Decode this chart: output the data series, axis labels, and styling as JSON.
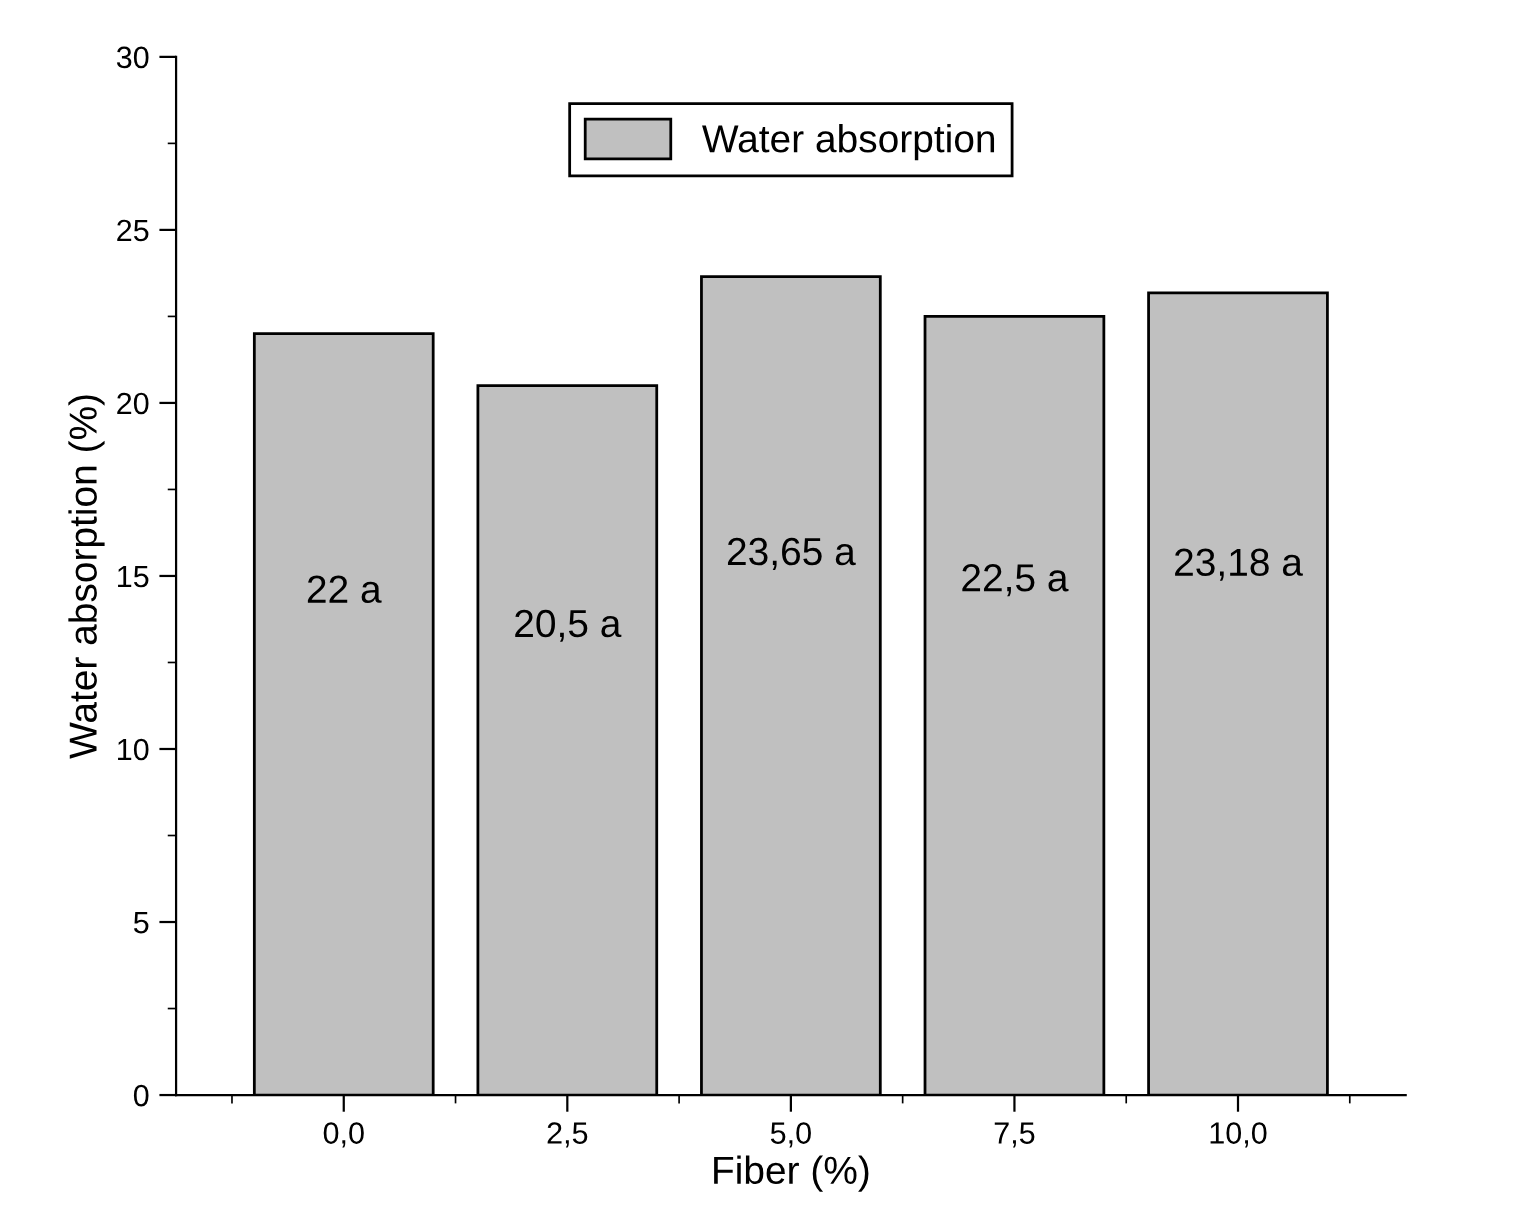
{
  "chart_data": {
    "type": "bar",
    "xlabel": "Fiber (%)",
    "ylabel": "Water absorption (%)",
    "categories": [
      "0,0",
      "2,5",
      "5,0",
      "7,5",
      "10,0"
    ],
    "series": [
      {
        "name": "Water absorption",
        "color": "#c0c0c0",
        "values": [
          22,
          20.5,
          23.65,
          22.5,
          23.18
        ],
        "value_labels": [
          "22 a",
          "20,5 a",
          "23,65 a",
          "22,5 a",
          "23,18 a"
        ]
      }
    ],
    "ylim": [
      0,
      30
    ],
    "yticks": [
      0,
      5,
      10,
      15,
      20,
      25,
      30
    ],
    "legend": "top",
    "grid": false
  }
}
